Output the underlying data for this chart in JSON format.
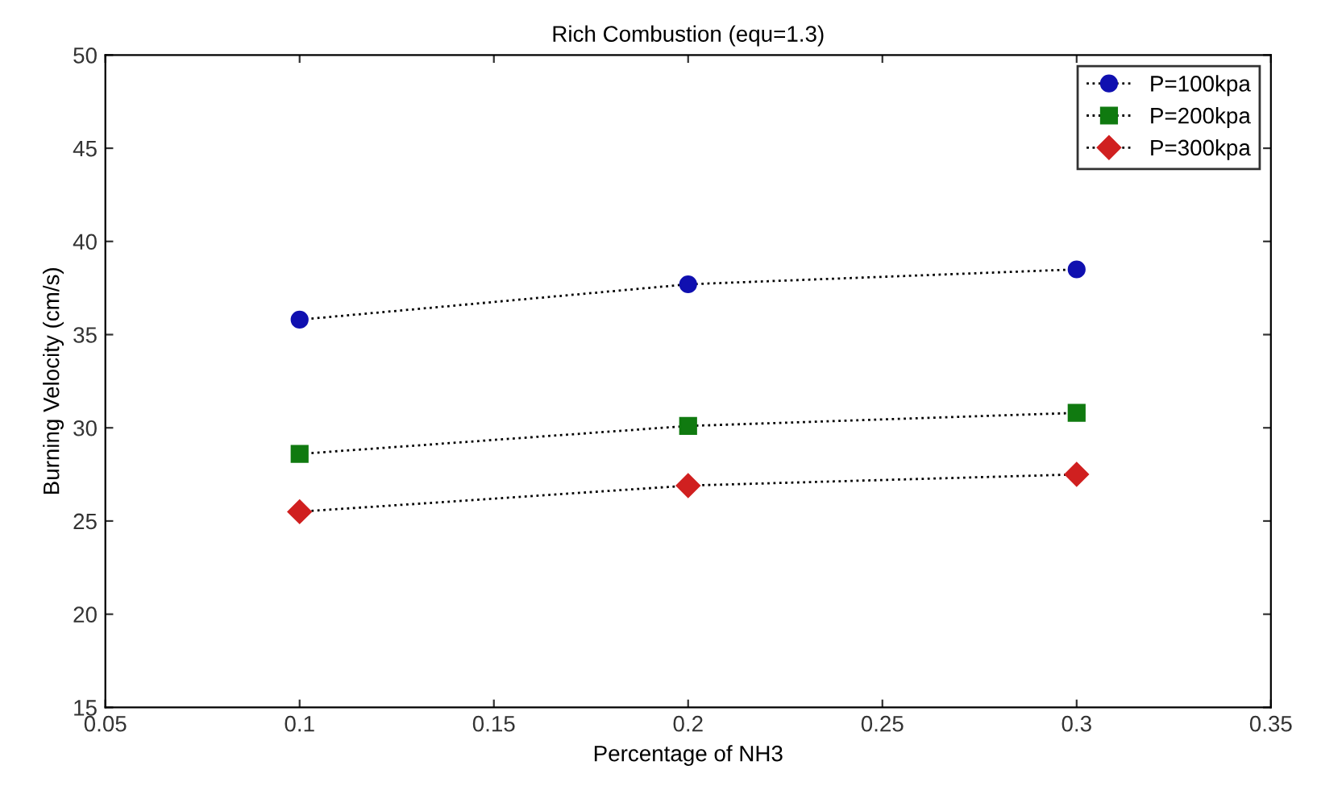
{
  "chart_data": {
    "type": "line",
    "title": "Rich Combustion (equ=1.3)",
    "xlabel": "Percentage of NH3",
    "ylabel": "Burning Velocity (cm/s)",
    "x": [
      0.1,
      0.2,
      0.3
    ],
    "series": [
      {
        "name": "P=100kpa",
        "color": "#1010b0",
        "marker": "circle",
        "values": [
          35.8,
          37.7,
          38.5
        ]
      },
      {
        "name": "P=200kpa",
        "color": "#107a10",
        "marker": "square",
        "values": [
          28.6,
          30.1,
          30.8
        ]
      },
      {
        "name": "P=300kpa",
        "color": "#d02020",
        "marker": "diamond",
        "values": [
          25.5,
          26.9,
          27.5
        ]
      }
    ],
    "xlim": [
      0.05,
      0.35
    ],
    "xticks": [
      0.05,
      0.1,
      0.15,
      0.2,
      0.25,
      0.3,
      0.35
    ],
    "ylim": [
      15,
      50
    ],
    "yticks": [
      15,
      20,
      25,
      30,
      35,
      40,
      45,
      50
    ],
    "line_style": "dotted",
    "grid": false,
    "legend": "top right"
  }
}
